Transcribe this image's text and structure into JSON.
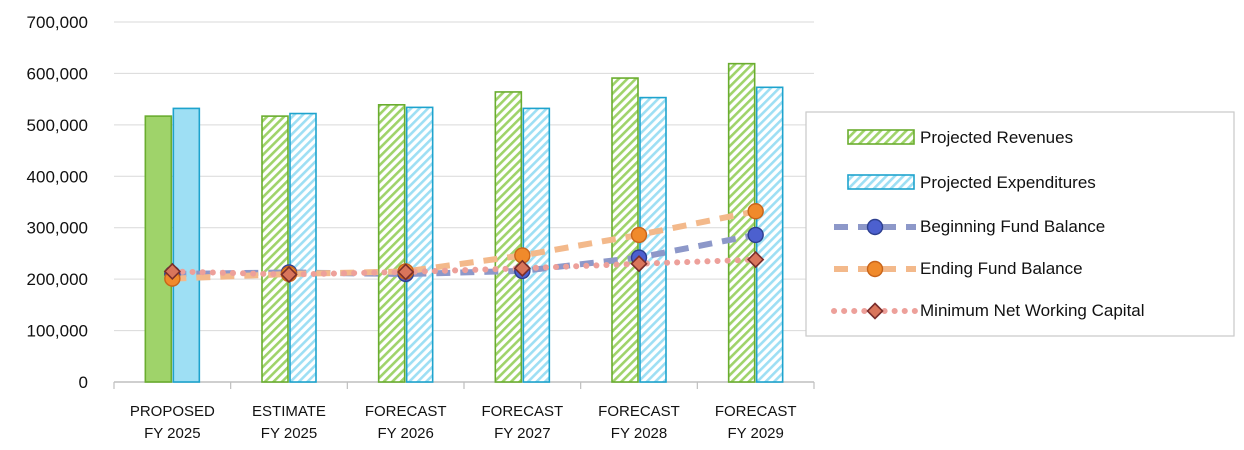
{
  "chart_data": {
    "type": "bar",
    "title": "",
    "xlabel": "",
    "ylabel": "",
    "ylim": [
      0,
      700000
    ],
    "yticks": [
      0,
      100000,
      200000,
      300000,
      400000,
      500000,
      600000,
      700000
    ],
    "ytick_labels": [
      "0",
      "100,000",
      "200,000",
      "300,000",
      "400,000",
      "500,000",
      "600,000",
      "700,000"
    ],
    "grid": true,
    "legend_position": "right",
    "categories": [
      [
        "PROPOSED",
        "FY 2025"
      ],
      [
        "ESTIMATE",
        "FY 2025"
      ],
      [
        "FORECAST",
        "FY 2026"
      ],
      [
        "FORECAST",
        "FY 2027"
      ],
      [
        "FORECAST",
        "FY 2028"
      ],
      [
        "FORECAST",
        "FY 2029"
      ]
    ],
    "bar_series": [
      {
        "name": "Projected Revenues",
        "values": [
          517000,
          517000,
          539000,
          564000,
          591000,
          619000
        ],
        "fill": "#9fd36a",
        "stroke": "#6aad2f",
        "first_bar_solid": true
      },
      {
        "name": "Projected Expenditures",
        "values": [
          532000,
          522000,
          534000,
          532000,
          553000,
          573000
        ],
        "fill": "#9edff4",
        "stroke": "#1ea3cd",
        "first_bar_solid": true
      }
    ],
    "line_series": [
      {
        "name": "Beginning Fund Balance",
        "values": [
          210000,
          213000,
          210000,
          216000,
          242000,
          286000
        ],
        "color": "#8d98c9",
        "marker_fill": "#4c60cf",
        "marker_stroke": "#2d3f8f",
        "marker": "circle",
        "dash": "dashed"
      },
      {
        "name": "Ending Fund Balance",
        "values": [
          201000,
          210000,
          215000,
          246000,
          286000,
          332000
        ],
        "color": "#f3b98b",
        "marker_fill": "#f08a2b",
        "marker_stroke": "#c8641a",
        "marker": "circle",
        "dash": "dashed"
      },
      {
        "name": "Minimum Net Working Capital",
        "values": [
          215000,
          209000,
          214000,
          221000,
          230000,
          238000
        ],
        "color": "#eda09a",
        "marker_fill": "#d9755b",
        "marker_stroke": "#7a2d2b",
        "marker": "diamond",
        "dash": "dotted"
      }
    ]
  }
}
